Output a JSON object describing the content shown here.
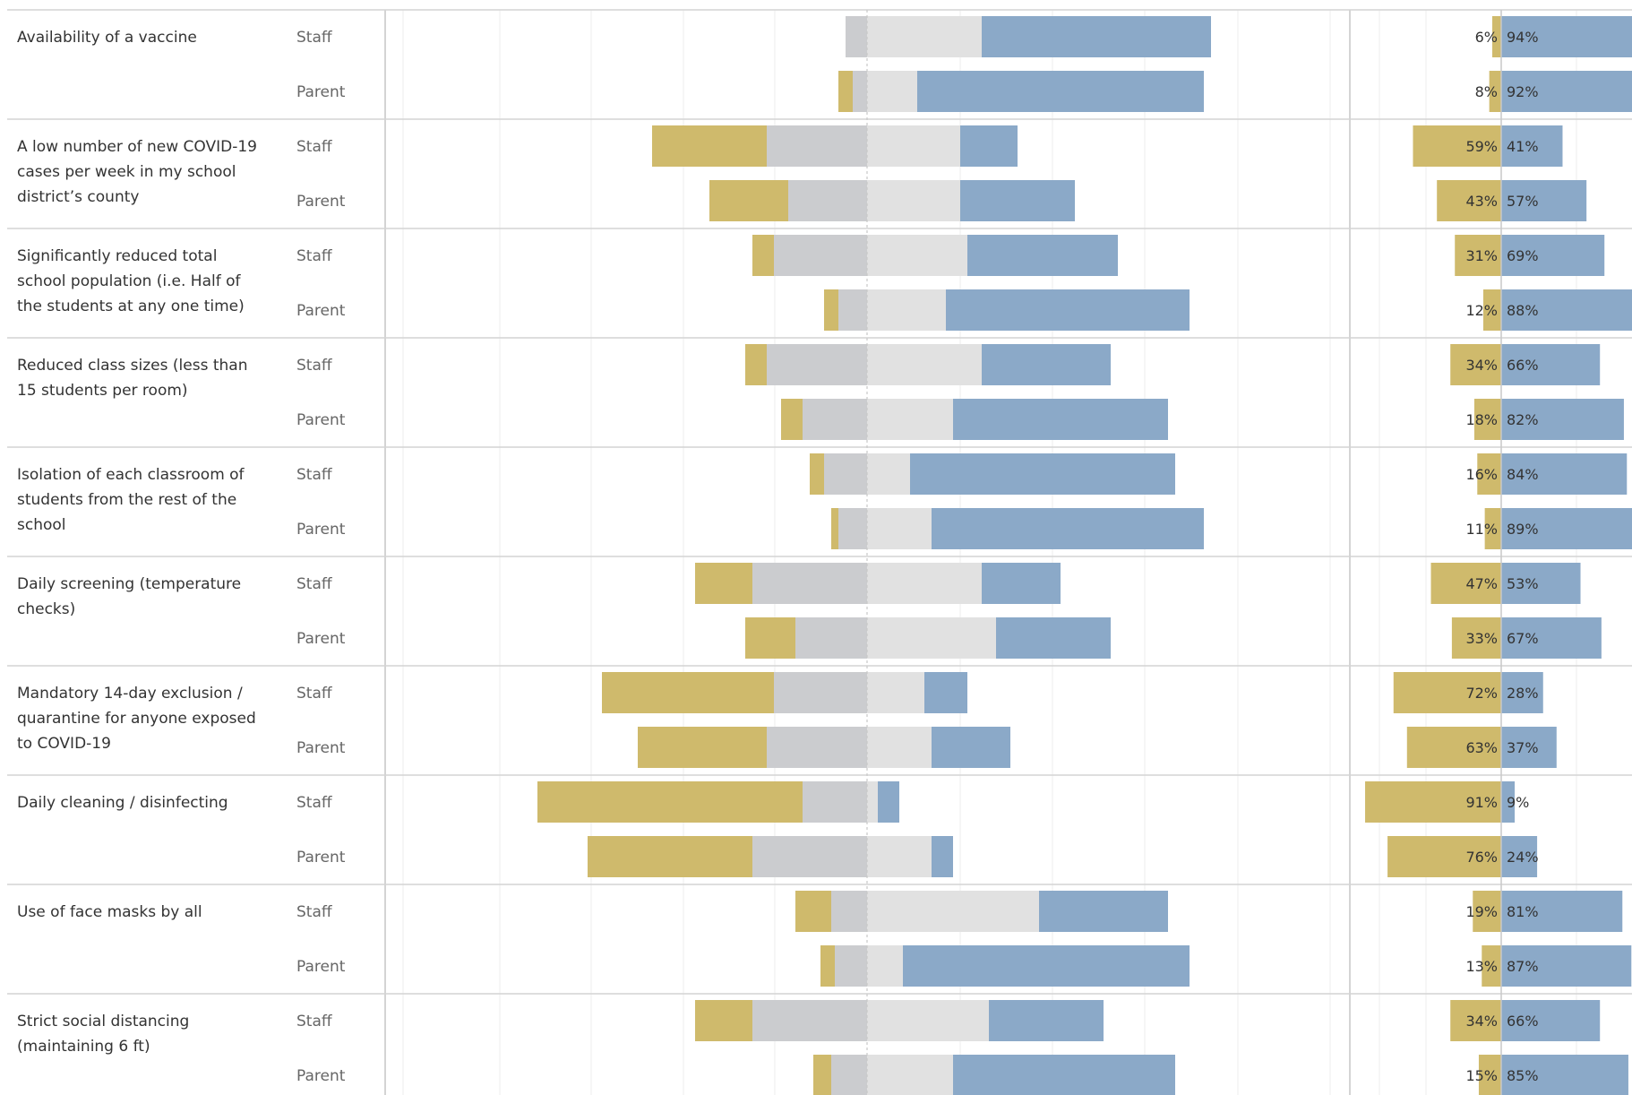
{
  "chart_data": {
    "type": "bar",
    "groups": [
      "Staff",
      "Parent"
    ],
    "colors": {
      "negative_strong": "#cfba6c",
      "negative_mild": "#cbcccf",
      "positive_mild": "#e1e1e1",
      "positive_strong": "#8ba9c8",
      "axis_line": "#c8c8c8",
      "grid": "#eeeeee",
      "row_line": "#d4d4d4"
    },
    "categories": [
      "Availability of a vaccine",
      "A low number of new COVID-19 cases per week in my school district’s county",
      "Significantly reduced total school population (i.e. Half of the students at any one time)",
      "Reduced class sizes (less than 15 students per room)",
      "Isolation of each classroom of students from the rest of the school",
      "Daily screening (temperature checks)",
      "Mandatory 14-day exclusion / quarantine for anyone exposed to COVID-19",
      "Daily cleaning / disinfecting",
      "Use of face masks by all",
      "Strict social distancing (maintaining 6 ft)"
    ],
    "category_lines": [
      [
        "Availability of a vaccine"
      ],
      [
        "A low number of new COVID-19",
        "cases per week in my school",
        "district’s county"
      ],
      [
        "Significantly reduced total",
        "school population (i.e. Half of",
        "the students at any one time)"
      ],
      [
        "Reduced class sizes (less than",
        "15 students per room)"
      ],
      [
        "Isolation of each classroom of",
        "students from the rest of the",
        "school"
      ],
      [
        "Daily screening (temperature",
        "checks)"
      ],
      [
        "Mandatory 14-day exclusion /",
        "quarantine for anyone exposed",
        "to COVID-19"
      ],
      [
        "Daily cleaning / disinfecting"
      ],
      [
        "Use of face masks by all"
      ],
      [
        "Strict social distancing",
        "(maintaining 6 ft)"
      ]
    ],
    "series": [
      {
        "values": [
          [
            0.0,
            3,
            16,
            32
          ],
          [
            2,
            2,
            7,
            40
          ],
          [
            16,
            14,
            13,
            8
          ],
          [
            11,
            11,
            13,
            16
          ],
          [
            3,
            13,
            14,
            21
          ],
          [
            2,
            4,
            11,
            34
          ],
          [
            3,
            14,
            16,
            18
          ],
          [
            3,
            9,
            12,
            30
          ],
          [
            2,
            6,
            6,
            37
          ],
          [
            1,
            4,
            9,
            38
          ],
          [
            8,
            16,
            16,
            11
          ],
          [
            7,
            10,
            18,
            16
          ],
          [
            24,
            13,
            8,
            6
          ],
          [
            18,
            14,
            9,
            11
          ],
          [
            37,
            9,
            1.5,
            3
          ],
          [
            23,
            16,
            9,
            3
          ],
          [
            5,
            5,
            24,
            18
          ],
          [
            2,
            4.5,
            5,
            40
          ],
          [
            8,
            16,
            17,
            16
          ],
          [
            2.5,
            5,
            12,
            31
          ]
        ]
      }
    ],
    "negative_pct": [
      "6%",
      "8%",
      "59%",
      "43%",
      "31%",
      "12%",
      "34%",
      "18%",
      "16%",
      "11%",
      "47%",
      "33%",
      "72%",
      "63%",
      "91%",
      "76%",
      "19%",
      "13%",
      "34%",
      "15%"
    ],
    "positive_pct": [
      "94%",
      "92%",
      "41%",
      "57%",
      "69%",
      "88%",
      "66%",
      "82%",
      "84%",
      "89%",
      "53%",
      "67%",
      "28%",
      "37%",
      "9%",
      "24%",
      "81%",
      "87%",
      "66%",
      "85%"
    ],
    "negative_values": [
      6,
      8,
      59,
      43,
      31,
      12,
      34,
      18,
      16,
      11,
      47,
      33,
      72,
      63,
      91,
      76,
      19,
      13,
      34,
      15
    ],
    "positive_values": [
      94,
      92,
      41,
      57,
      69,
      88,
      66,
      82,
      84,
      89,
      53,
      67,
      28,
      37,
      9,
      24,
      81,
      87,
      66,
      85
    ],
    "grid": true,
    "legend": "none"
  }
}
